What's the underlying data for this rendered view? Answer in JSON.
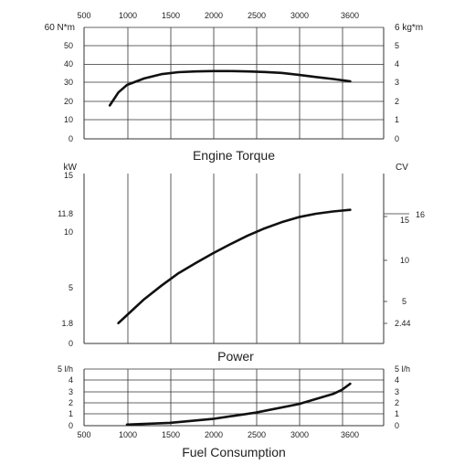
{
  "chart_data": [
    {
      "type": "line",
      "title": "Engine Torque",
      "x_ticks": [
        "500",
        "1000",
        "1500",
        "2000",
        "2500",
        "3000",
        "3600"
      ],
      "xlim": [
        500,
        4000
      ],
      "left_unit": "60 N*m",
      "left_ticks": [
        "50",
        "40",
        "30",
        "20",
        "10",
        "0"
      ],
      "ylim_left": [
        0,
        60
      ],
      "right_unit": "6 kg*m",
      "right_ticks": [
        "5",
        "4",
        "3",
        "2",
        "1",
        "0"
      ],
      "ylim_right": [
        0,
        6
      ],
      "grid": true,
      "series": [
        {
          "x": [
            800,
            900,
            1000,
            1200,
            1400,
            1600,
            1800,
            2000,
            2200,
            2400,
            2600,
            2800,
            3000,
            3200,
            3400,
            3600
          ],
          "y": [
            18,
            25,
            29,
            32.5,
            34.8,
            35.9,
            36.3,
            36.5,
            36.5,
            36.3,
            36,
            35.5,
            34.5,
            33.3,
            32.2,
            31
          ]
        }
      ]
    },
    {
      "type": "line",
      "title": "Power",
      "left_unit": "kW",
      "left_ticks": [
        "15",
        "11.8",
        "10",
        "5",
        "1.8",
        "0"
      ],
      "ylim_left": [
        0,
        15
      ],
      "right_unit": "CV",
      "right_ticks": [
        "15",
        "10",
        "5",
        "2.44"
      ],
      "right_peak_label": "16",
      "grid": true,
      "series": [
        {
          "x": [
            900,
            1000,
            1200,
            1400,
            1600,
            1800,
            2000,
            2200,
            2400,
            2600,
            2800,
            3000,
            3200,
            3400,
            3600
          ],
          "y": [
            1.8,
            2.5,
            3.9,
            5.1,
            6.2,
            7.1,
            7.95,
            8.75,
            9.5,
            10.15,
            10.7,
            11.15,
            11.45,
            11.65,
            11.8
          ]
        }
      ]
    },
    {
      "type": "line",
      "title": "Fuel Consumption",
      "x_ticks": [
        "500",
        "1000",
        "1500",
        "2000",
        "2500",
        "3000",
        "3600"
      ],
      "left_unit": "5 l/h",
      "left_ticks": [
        "4",
        "3",
        "2",
        "1",
        "0"
      ],
      "ylim_left": [
        0,
        5
      ],
      "right_unit": "5 l/h",
      "right_ticks": [
        "4",
        "3",
        "2",
        "1",
        "0"
      ],
      "ylim_right": [
        0,
        5
      ],
      "grid": true,
      "series": [
        {
          "x": [
            1000,
            1200,
            1500,
            2000,
            2500,
            3000,
            3400,
            3500,
            3600
          ],
          "y": [
            0.1,
            0.15,
            0.25,
            0.6,
            1.15,
            1.9,
            2.8,
            3.15,
            3.7
          ]
        }
      ]
    }
  ]
}
